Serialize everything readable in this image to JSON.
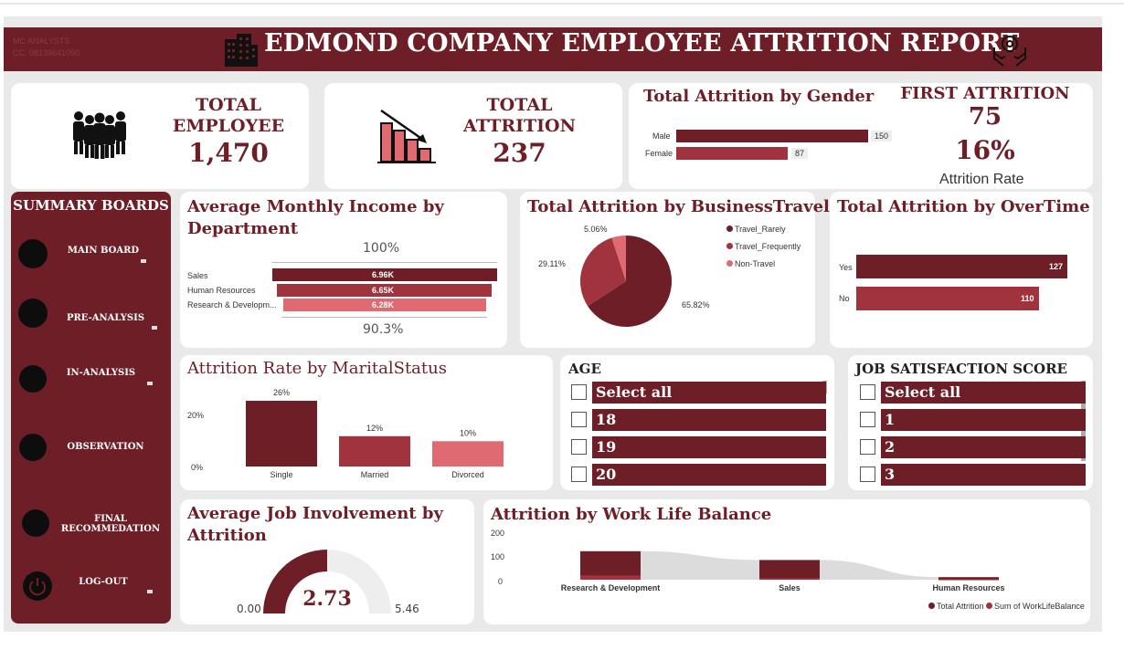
{
  "header": {
    "analyst_name": "MC ANALYSTS",
    "analyst_contact": "CC. 08139641050",
    "title": "EDMOND COMPANY EMPLOYEE ATTRITION REPORT"
  },
  "colors": {
    "primary": "#6e1e27",
    "secondary": "#a1333e",
    "tertiary": "#df6a72",
    "background": "#e9e9e9"
  },
  "kpis": {
    "total_employee": {
      "label": "TOTAL EMPLOYEE",
      "value": "1,470"
    },
    "total_attrition": {
      "label": "TOTAL ATTRITION",
      "value": "237"
    },
    "first_attrition": {
      "label": "FIRST ATTRITION",
      "value": "75",
      "rate": "16%",
      "rate_label": "Attrition Rate"
    }
  },
  "sidebar": {
    "title": "SUMMARY BOARDS",
    "items": [
      {
        "label": "MAIN BOARD",
        "icon": "circle-icon"
      },
      {
        "label": "PRE-ANALYSIS",
        "icon": "circle-icon"
      },
      {
        "label": "IN-ANALYSIS",
        "icon": "circle-icon"
      },
      {
        "label": "OBSERVATION",
        "icon": "circle-icon"
      },
      {
        "label": "FINAL RECOMMEDATION",
        "icon": "circle-icon"
      },
      {
        "label": "LOG-OUT",
        "icon": "power-icon"
      }
    ]
  },
  "gender": {
    "title": "Total Attrition by Gender",
    "male_label": "Male",
    "male_value": "150",
    "female_label": "Female",
    "female_value": "87"
  },
  "income": {
    "title": "Average Monthly Income by Department",
    "top_pct": "100%",
    "bottom_pct": "90.3%",
    "rows": [
      {
        "label": "Sales",
        "value": "6.96K"
      },
      {
        "label": "Human Resources",
        "value": "6.65K"
      },
      {
        "label": "Research & Developm...",
        "value": "6.28K"
      }
    ]
  },
  "travel": {
    "title": "Total Attrition by BusinessTravel",
    "legend": [
      "Travel_Rarely",
      "Travel_Frequently",
      "Non-Travel"
    ],
    "pct_rarely": "65.82%",
    "pct_frequently": "29.11%",
    "pct_non": "5.06%"
  },
  "overtime": {
    "title": "Total Attrition by OverTime",
    "yes_label": "Yes",
    "yes_value": "127",
    "no_label": "No",
    "no_value": "110"
  },
  "marital": {
    "title": "Attrition Rate by MaritalStatus",
    "y_ticks": [
      "20%",
      "0%"
    ]
  },
  "age_slicer": {
    "title": "AGE",
    "items": [
      "Select all",
      "18",
      "19",
      "20"
    ]
  },
  "job_slicer": {
    "title": "JOB SATISFACTION SCORE",
    "items": [
      "Select all",
      "1",
      "2",
      "3"
    ]
  },
  "involvement": {
    "title": "Average Job Involvement by Attrition",
    "min": "0.00",
    "max": "5.46",
    "value": "2.73"
  },
  "worklife": {
    "title": "Attrition by Work Life Balance",
    "y_ticks": [
      "200",
      "100",
      "0"
    ],
    "legend_total": "Total Attrition",
    "legend_sum": "Sum of WorkLifeBalance"
  },
  "chart_data": [
    {
      "type": "bar",
      "title": "Total Attrition by Gender",
      "categories": [
        "Male",
        "Female"
      ],
      "values": [
        150,
        87
      ]
    },
    {
      "type": "bar",
      "title": "Average Monthly Income by Department",
      "categories": [
        "Sales",
        "Human Resources",
        "Research & Developm..."
      ],
      "values": [
        6.96,
        6.65,
        6.28
      ],
      "unit": "K"
    },
    {
      "type": "pie",
      "title": "Total Attrition by BusinessTravel",
      "categories": [
        "Travel_Rarely",
        "Travel_Frequently",
        "Non-Travel"
      ],
      "values": [
        65.82,
        29.11,
        5.06
      ],
      "legend": "top-right"
    },
    {
      "type": "bar",
      "title": "Total Attrition by OverTime",
      "categories": [
        "Yes",
        "No"
      ],
      "values": [
        127,
        110
      ]
    },
    {
      "type": "bar",
      "title": "Attrition Rate by MaritalStatus",
      "categories": [
        "Single",
        "Married",
        "Divorced"
      ],
      "values": [
        26,
        12,
        10
      ],
      "data_labels": [
        "26%",
        "12%",
        "10%"
      ],
      "ylim": [
        0,
        30
      ]
    },
    {
      "type": "bar",
      "title": "Attrition by Work Life Balance",
      "categories": [
        "Research & Development",
        "Sales",
        "Human Resources"
      ],
      "series": [
        {
          "name": "Total Attrition",
          "values": [
            133,
            92,
            12
          ]
        },
        {
          "name": "Sum of WorkLifeBalance",
          "values": [
            20,
            8,
            2
          ]
        }
      ],
      "ylim": [
        0,
        230
      ]
    }
  ]
}
